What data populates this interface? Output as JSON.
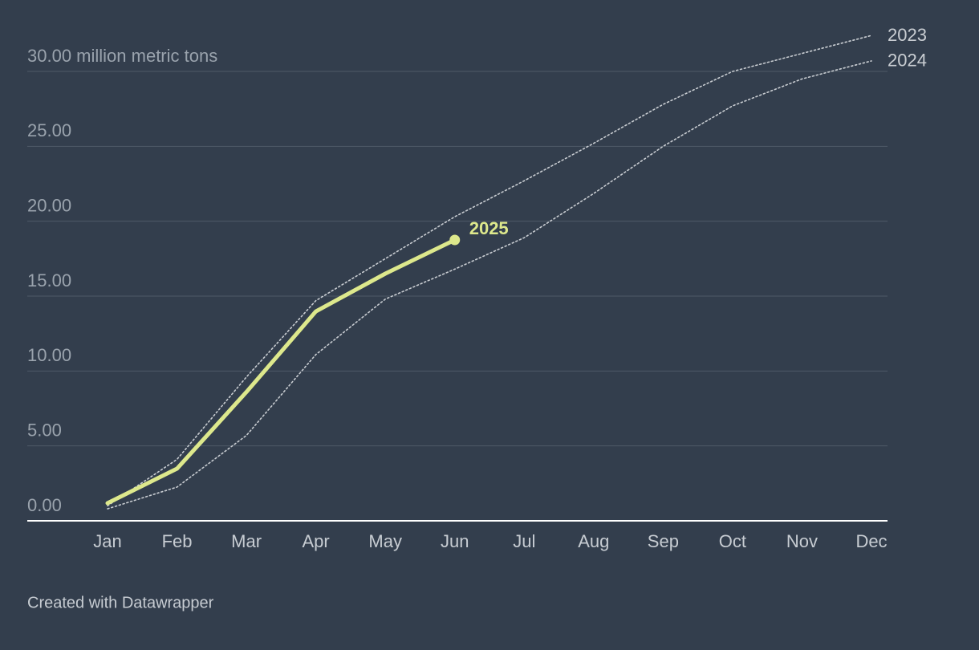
{
  "chart_data": {
    "type": "line",
    "categories": [
      "Jan",
      "Feb",
      "Mar",
      "Apr",
      "May",
      "Jun",
      "Jul",
      "Aug",
      "Sep",
      "Oct",
      "Nov",
      "Dec"
    ],
    "series": [
      {
        "name": "2023",
        "color": "#c9cdd2",
        "values": [
          1.0,
          4.1,
          9.6,
          14.7,
          17.5,
          20.3,
          22.7,
          25.2,
          27.8,
          30.0,
          31.2,
          32.4
        ]
      },
      {
        "name": "2024",
        "color": "#c9cdd2",
        "values": [
          0.8,
          2.25,
          5.7,
          11.1,
          14.8,
          16.8,
          18.9,
          21.85,
          25.0,
          27.7,
          29.5,
          30.7
        ]
      },
      {
        "name": "2025",
        "color": "#dde88c",
        "values": [
          1.18,
          3.48,
          8.6,
          13.98,
          16.5,
          18.75,
          null,
          null,
          null,
          null,
          null,
          null
        ]
      }
    ],
    "ylim": [
      0,
      30
    ],
    "yticks": [
      {
        "value": 0,
        "label": "0.00"
      },
      {
        "value": 5,
        "label": "5.00"
      },
      {
        "value": 10,
        "label": "10.00"
      },
      {
        "value": 15,
        "label": "15.00"
      },
      {
        "value": 20,
        "label": "20.00"
      },
      {
        "value": 25,
        "label": "25.00"
      },
      {
        "value": 30,
        "label": "30.00 million metric tons"
      }
    ],
    "grid": true,
    "footer": "Created with Datawrapper"
  }
}
